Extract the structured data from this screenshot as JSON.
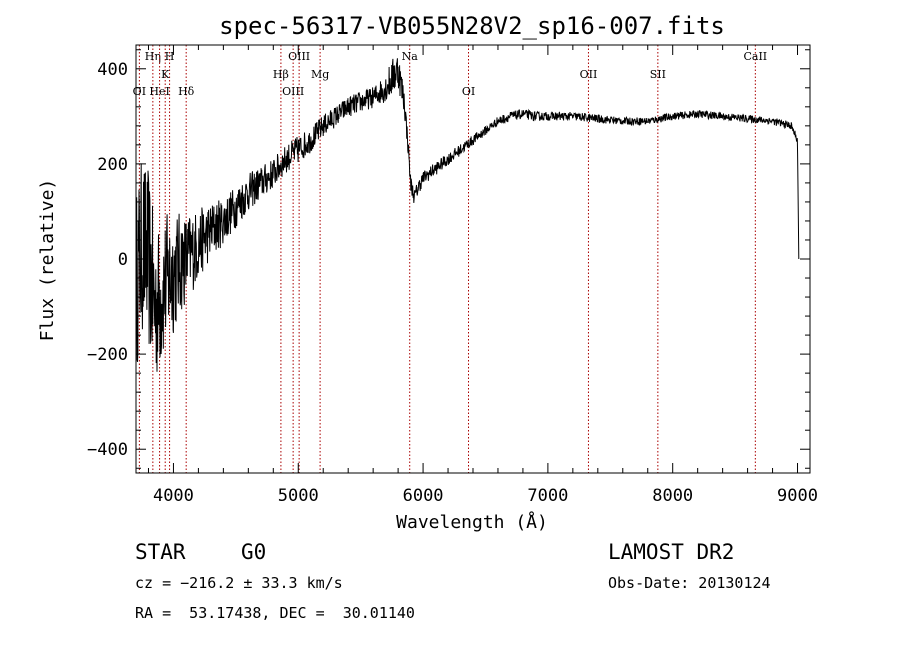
{
  "chart_data": {
    "type": "line",
    "title": "spec-56317-VB055N28V2_sp16-007.fits",
    "xlabel": "Wavelength (Å)",
    "ylabel": "Flux (relative)",
    "xlim": [
      3700,
      9100
    ],
    "ylim": [
      -450,
      450
    ],
    "x_ticks": [
      4000,
      5000,
      6000,
      7000,
      8000,
      9000
    ],
    "y_ticks": [
      -400,
      -200,
      0,
      200,
      400
    ],
    "x_tick_labels": [
      "4000",
      "5000",
      "6000",
      "7000",
      "8000",
      "9000"
    ],
    "y_tick_labels": [
      "−400",
      "−200",
      "0",
      "200",
      "400"
    ],
    "grid": false,
    "line_color": "#000000",
    "marker_color": "#aa0000",
    "series": [
      {
        "x": [
          3700,
          3750,
          3800,
          3850,
          3900,
          3950,
          4000,
          4050,
          4100,
          4200,
          4300,
          4400,
          4500,
          4600,
          4700,
          4800,
          4900,
          5000,
          5100,
          5200,
          5300,
          5400,
          5500,
          5600,
          5700,
          5750,
          5800,
          5850,
          5880,
          5900,
          5930,
          5960,
          6000,
          6100,
          6200,
          6300,
          6400,
          6500,
          6600,
          6700,
          6800,
          6900,
          7000,
          7200,
          7400,
          7600,
          7800,
          8000,
          8200,
          8400,
          8600,
          8800,
          8950,
          9000,
          9010
        ],
        "y": [
          -50,
          30,
          0,
          -100,
          -80,
          -40,
          -30,
          -10,
          0,
          30,
          60,
          80,
          110,
          140,
          160,
          180,
          210,
          230,
          250,
          280,
          300,
          320,
          330,
          340,
          360,
          380,
          400,
          330,
          240,
          160,
          130,
          150,
          170,
          190,
          210,
          230,
          250,
          270,
          290,
          300,
          305,
          300,
          300,
          300,
          295,
          290,
          290,
          300,
          305,
          300,
          295,
          290,
          280,
          250,
          0
        ],
        "noise": [
          190,
          190,
          190,
          170,
          150,
          140,
          130,
          110,
          95,
          75,
          60,
          50,
          45,
          40,
          35,
          32,
          30,
          30,
          26,
          24,
          22,
          22,
          22,
          22,
          30,
          40,
          40,
          30,
          20,
          18,
          16,
          16,
          15,
          14,
          13,
          12,
          11,
          10,
          10,
          10,
          10,
          10,
          9,
          9,
          9,
          8,
          8,
          8,
          8,
          8,
          8,
          8,
          8,
          8,
          0
        ]
      }
    ],
    "lines": [
      {
        "label": "OI",
        "x": 3727,
        "row": 2
      },
      {
        "label": "Hη",
        "x": 3835,
        "row": 0
      },
      {
        "label": "HeI",
        "x": 3889,
        "row": 2
      },
      {
        "label": "K",
        "x": 3934,
        "row": 1
      },
      {
        "label": "H",
        "x": 3969,
        "row": 0
      },
      {
        "label": "Hδ",
        "x": 4102,
        "row": 2
      },
      {
        "label": "Hβ",
        "x": 4861,
        "row": 1
      },
      {
        "label": "OIII",
        "x": 4959,
        "row": 2
      },
      {
        "label": "OIII",
        "x": 5007,
        "row": 0
      },
      {
        "label": "Mg",
        "x": 5175,
        "row": 1
      },
      {
        "label": "Na",
        "x": 5893,
        "row": 0
      },
      {
        "label": "OI",
        "x": 6364,
        "row": 2
      },
      {
        "label": "OII",
        "x": 7325,
        "row": 1
      },
      {
        "label": "SII",
        "x": 7881,
        "row": 1
      },
      {
        "label": "CaII",
        "x": 8662,
        "row": 0
      }
    ]
  },
  "info": {
    "class": "STAR",
    "subclass": "G0",
    "survey": "LAMOST DR2",
    "cz": "cz = −216.2 ± 33.3 km/s",
    "obs_date": "Obs-Date: 20130124",
    "coords": "RA =  53.17438, DEC =  30.01140"
  }
}
